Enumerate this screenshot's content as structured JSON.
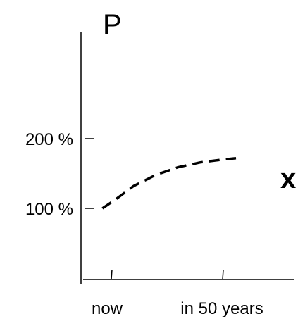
{
  "chart_data": {
    "type": "line",
    "title": "",
    "ylabel": "P",
    "xlabel": "x",
    "x_ticks": [
      {
        "value": 0,
        "label": "now"
      },
      {
        "value": 50,
        "label": "in 50 years"
      }
    ],
    "y_ticks": [
      {
        "value": 100,
        "label": "100 %"
      },
      {
        "value": 200,
        "label": "200 %"
      }
    ],
    "xlim": [
      -10,
      80
    ],
    "ylim": [
      0,
      320
    ],
    "grid": false,
    "series": [
      {
        "style": "dashed",
        "color": "#000000",
        "x": [
          -4,
          2,
          10,
          20,
          30,
          40,
          50,
          56
        ],
        "y": [
          100,
          113,
          132,
          148,
          159,
          166,
          170,
          172
        ]
      }
    ]
  }
}
